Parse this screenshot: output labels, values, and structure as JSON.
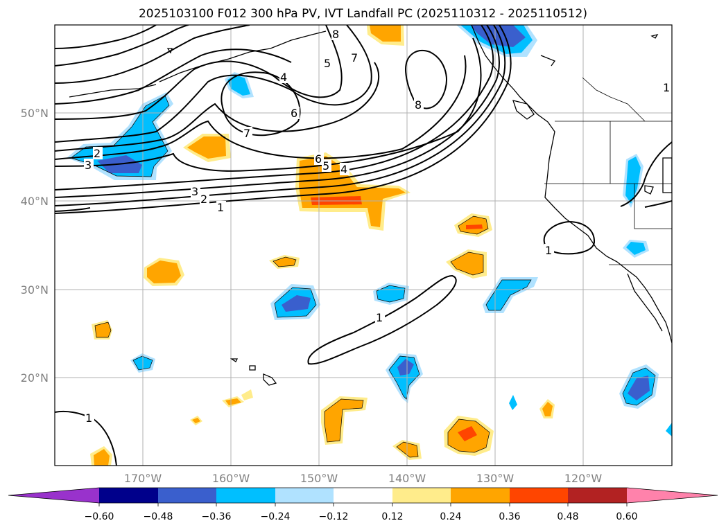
{
  "map": {
    "title": "2025103100 F012 300 hPa PV, IVT Landfall PC (2025110312 - 2025110512)",
    "lon_labels": [
      "170°W",
      "160°W",
      "150°W",
      "140°W",
      "130°W",
      "120°W"
    ],
    "lat_labels": [
      "50°N",
      "40°N",
      "30°N",
      "20°N"
    ],
    "contour_labels": [
      "1",
      "2",
      "3",
      "4",
      "5",
      "6",
      "7",
      "8"
    ],
    "colorbar": {
      "tick_labels": [
        "−0.60",
        "−0.48",
        "−0.36",
        "−0.24",
        "−0.12",
        "0.12",
        "0.24",
        "0.36",
        "0.48",
        "0.60"
      ],
      "colors": [
        "#9932cc",
        "#00008b",
        "#3a5fcd",
        "#00bfff",
        "#b0e2ff",
        "#ffffff",
        "#ffec8b",
        "#ffa500",
        "#ff4500",
        "#b22222",
        "#ff82ab"
      ]
    },
    "palette": {
      "neg_strong": "#3a5fcd",
      "neg_mid": "#00bfff",
      "neg_weak": "#b0e2ff",
      "pos_weak": "#ffec8b",
      "pos_mid": "#ffa500",
      "pos_strong": "#ff4500"
    }
  }
}
